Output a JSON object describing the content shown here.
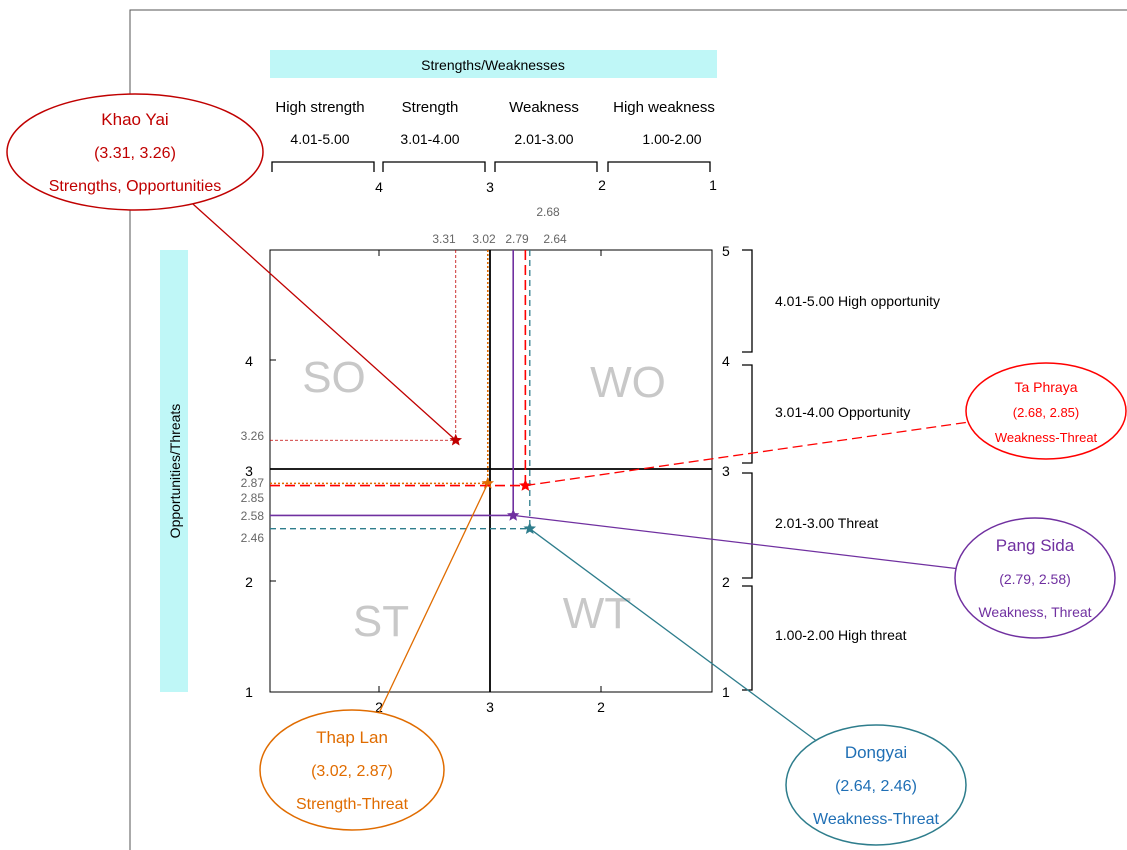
{
  "chart_data": {
    "type": "scatter",
    "x_title": "Strengths/Weaknesses",
    "y_title": "Opportunities/Threats",
    "x_range": [
      1,
      5
    ],
    "y_range": [
      1,
      5
    ],
    "x_ticks": [
      "2",
      "3",
      "2"
    ],
    "y_ticks": [
      "1",
      "2",
      "3",
      "4"
    ],
    "right_ticks": [
      "5",
      "4",
      "3",
      "2",
      "1"
    ],
    "top_ticks": [
      "4",
      "3",
      "2",
      "1"
    ],
    "x_bands": [
      {
        "name": "High strength",
        "range": "4.01-5.00"
      },
      {
        "name": "Strength",
        "range": "3.01-4.00"
      },
      {
        "name": "Weakness",
        "range": "2.01-3.00"
      },
      {
        "name": "High weakness",
        "range": "1.00-2.00"
      }
    ],
    "y_bands": [
      {
        "label": "4.01-5.00 High opportunity"
      },
      {
        "label": "3.01-4.00 Opportunity"
      },
      {
        "label": "2.01-3.00 Threat"
      },
      {
        "label": "1.00-2.00 High threat"
      }
    ],
    "quadrants": [
      "SO",
      "WO",
      "ST",
      "WT"
    ],
    "points": [
      {
        "name": "Khao Yai",
        "coords": "(3.31, 3.26)",
        "category": "Strengths, Opportunities",
        "x": 3.31,
        "y": 3.26,
        "x_label": "3.31",
        "y_label": "3.26",
        "color": "#c00000"
      },
      {
        "name": "Thap Lan",
        "coords": "(3.02, 2.87)",
        "category": "Strength-Threat",
        "x": 3.02,
        "y": 2.87,
        "x_label": "3.02",
        "y_label": "2.87",
        "color": "#e06c00"
      },
      {
        "name": "Pang Sida",
        "coords": "(2.79, 2.58)",
        "category": "Weakness, Threat",
        "x": 2.79,
        "y": 2.58,
        "x_label": "2.79",
        "y_label": "2.58",
        "color": "#7030a0"
      },
      {
        "name": "Ta Phraya",
        "coords": "(2.68, 2.85)",
        "category": "Weakness-Threat",
        "x": 2.68,
        "y": 2.85,
        "x_label": "2.68",
        "y_label": "2.85",
        "color": "#ff0000"
      },
      {
        "name": "Dongyai",
        "coords": "(2.64, 2.46)",
        "category": "Weakness-Threat",
        "x": 2.64,
        "y": 2.46,
        "x_label": "2.64",
        "y_label": "2.46",
        "color": "#2e7d8c",
        "text_color": "#1f6fb5"
      }
    ]
  }
}
